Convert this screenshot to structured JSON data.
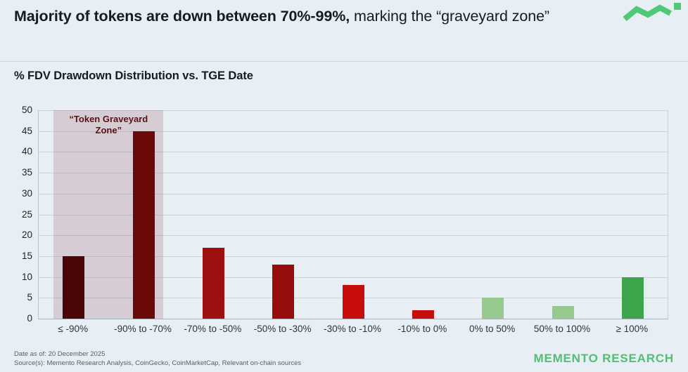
{
  "header": {
    "title_bold": "Majority of tokens are down between 70%-99%,",
    "title_rest": " marking the “graveyard zone”"
  },
  "logo": {
    "name": "memento-logo",
    "color": "#4fc878"
  },
  "chart_title": "% FDV Drawdown Distribution vs. TGE Date",
  "chart_data": {
    "type": "bar",
    "title": "% FDV Drawdown Distribution vs. TGE Date",
    "categories": [
      "≤ -90%",
      "-90% to -70%",
      "-70% to -50%",
      "-50% to -30%",
      "-30% to -10%",
      "-10% to 0%",
      "0% to 50%",
      "50% to 100%",
      "≥ 100%"
    ],
    "values": [
      15,
      45,
      17,
      13,
      8,
      2,
      5,
      3,
      10
    ],
    "bar_colors": [
      "#4a0606",
      "#6b0808",
      "#9e0f0f",
      "#970d0d",
      "#c80d0d",
      "#c80d0d",
      "#96c98e",
      "#96c98e",
      "#3fa54d"
    ],
    "xlabel": "",
    "ylabel": "",
    "ylim": [
      0,
      50
    ],
    "ytick_step": 5,
    "grid": true,
    "legend": false,
    "annotation": {
      "label_lines": [
        "“Token Graveyard",
        "Zone”"
      ],
      "zone_categories": [
        0,
        1
      ],
      "zone_fill": "rgba(122,31,48,0.16)",
      "label_color": "#5c1111"
    }
  },
  "footer": {
    "date_line": "Date as of: 20 December 2025",
    "source_line": "Source(s): Memento Research Analysis, CoinGecko, CoinMarketCap, Relevant on-chain sources",
    "brand": "MEMENTO RESEARCH",
    "brand_color": "#53be75"
  }
}
